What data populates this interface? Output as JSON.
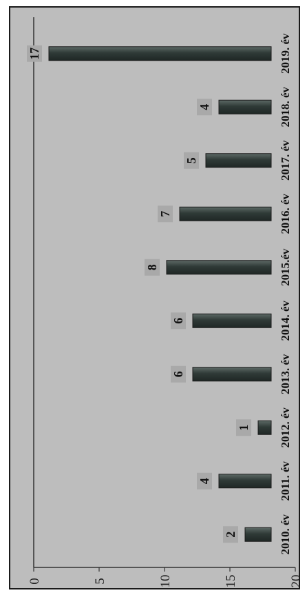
{
  "chart_data": {
    "type": "bar",
    "orientation": "horizontal-rotated",
    "categories": [
      "2010. év",
      "2011. év",
      "2012. év",
      "2013. év",
      "2014. év",
      "2015.év",
      "2016. év",
      "2017. év",
      "2018. év",
      "2019. év"
    ],
    "values": [
      2,
      4,
      1,
      6,
      6,
      8,
      7,
      5,
      4,
      17
    ],
    "data_labels": [
      "2",
      "4",
      "1",
      "6",
      "6",
      "8",
      "7",
      "5",
      "4",
      "17"
    ],
    "title": "",
    "xlabel": "",
    "ylabel": "",
    "ylim": [
      0,
      20
    ],
    "ticks": [
      0,
      5,
      10,
      15,
      20
    ],
    "tick_labels": [
      "0",
      "5",
      "10",
      "15",
      "20"
    ],
    "grid": false,
    "legend": "none",
    "colors": {
      "background": "#bdbdbd",
      "bar": "#2f3a37",
      "bar_highlight": "#5d6a66",
      "label_box": "#a9a9a9"
    }
  }
}
